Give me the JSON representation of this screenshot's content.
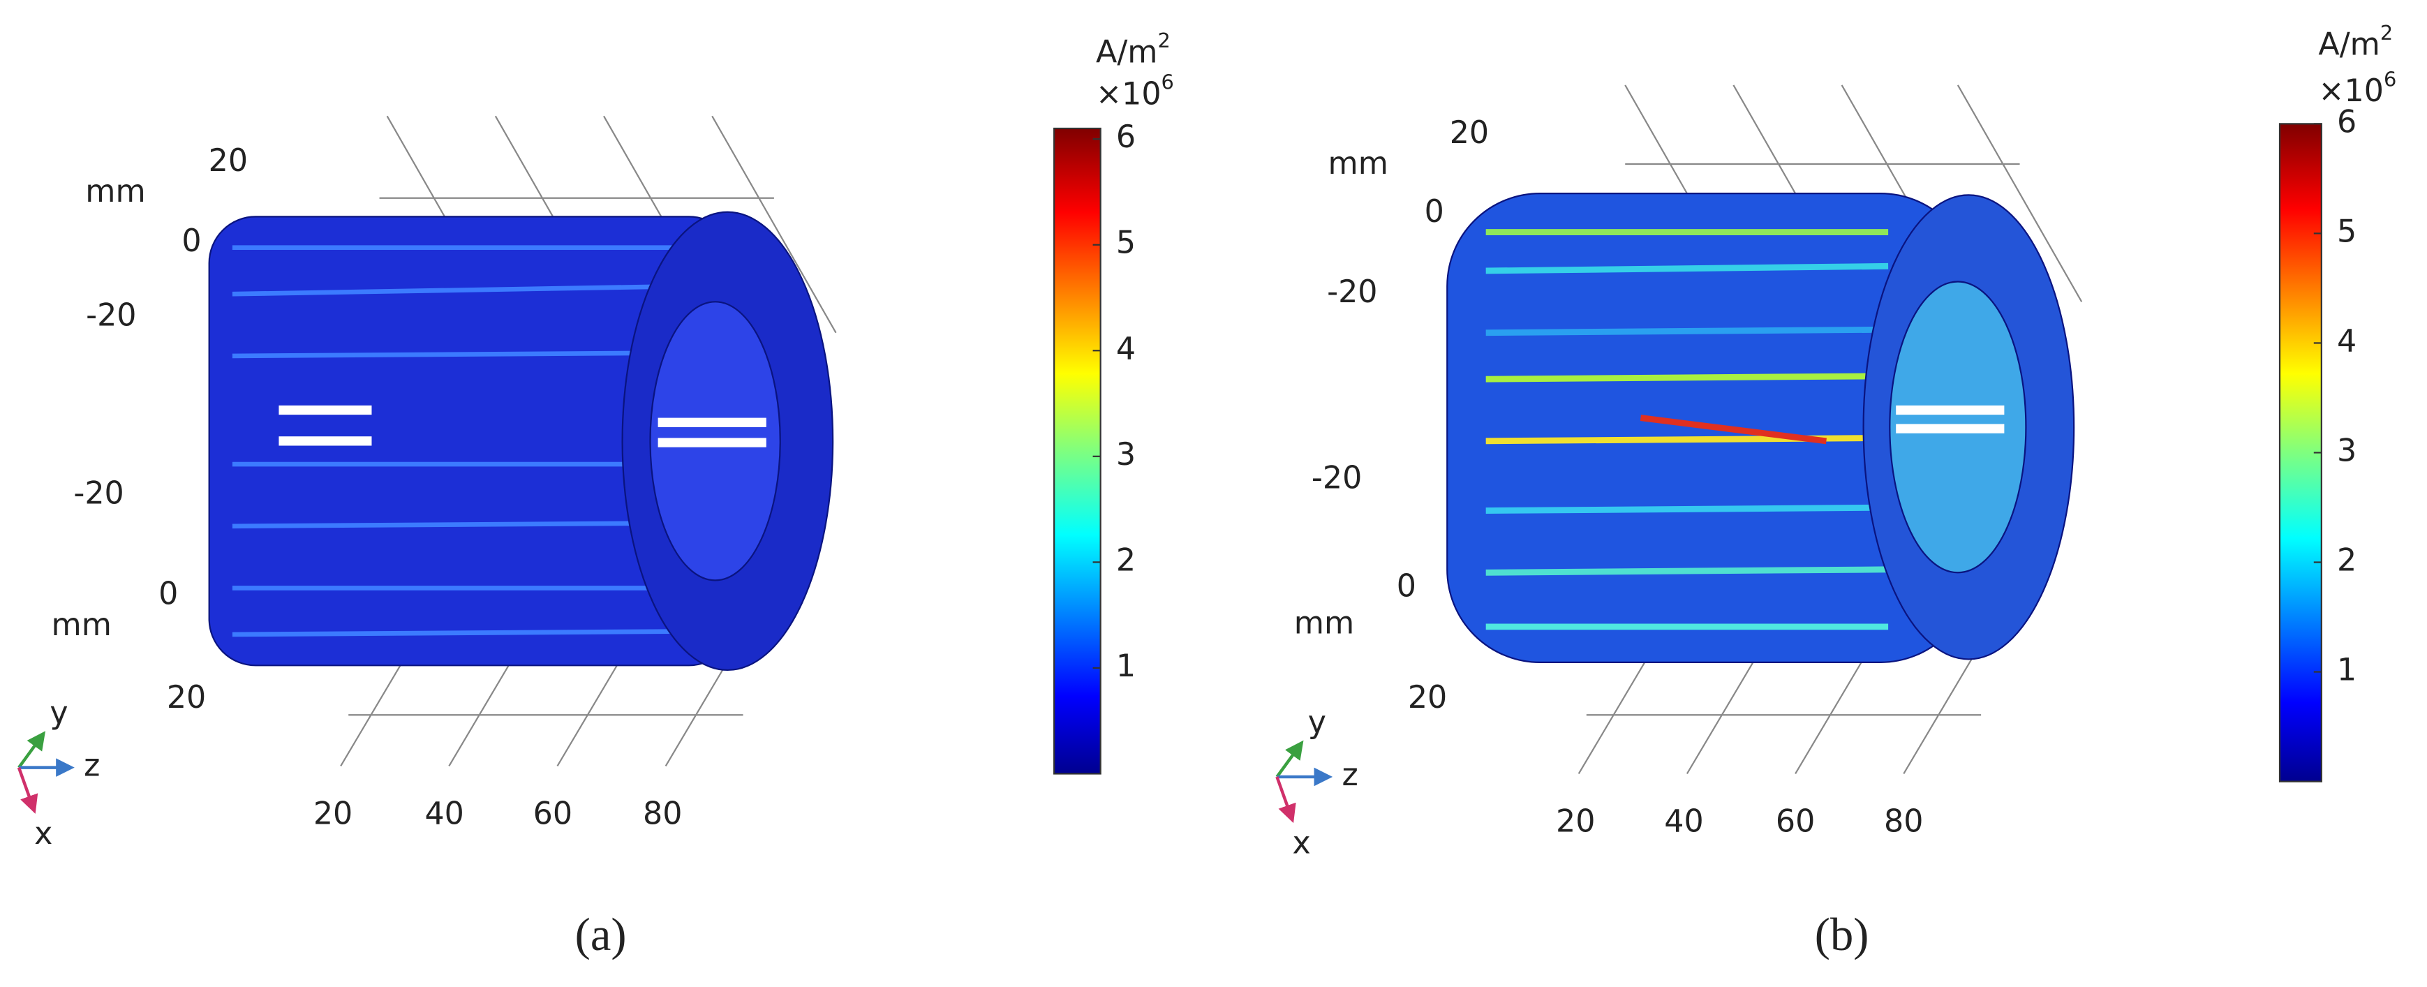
{
  "panels": [
    {
      "caption": "(a)",
      "unit": "A/m",
      "unit_exp": "2",
      "multiplier": "×10",
      "multiplier_exp": "6",
      "colorbar_range": [
        0,
        6.1
      ],
      "colorbar_ticks": [
        1,
        2,
        3,
        4,
        5,
        6
      ],
      "y_axis_unit": "mm",
      "y_ticks": [
        20,
        0,
        -20
      ],
      "x_axis_unit": "mm",
      "x_ticks": [
        -20,
        0,
        20
      ],
      "z_ticks": [
        20,
        40,
        60,
        80
      ],
      "triad": [
        "y",
        "z",
        "x"
      ]
    },
    {
      "caption": "(b)",
      "unit": "A/m",
      "unit_exp": "2",
      "multiplier": "×10",
      "multiplier_exp": "6",
      "colorbar_range": [
        0,
        6
      ],
      "colorbar_ticks": [
        1,
        2,
        3,
        4,
        5,
        6
      ],
      "y_axis_unit": "mm",
      "y_ticks": [
        20,
        0,
        -20
      ],
      "x_axis_unit": "mm",
      "x_ticks": [
        -20,
        0,
        20
      ],
      "z_ticks": [
        20,
        40,
        60,
        80
      ],
      "triad": [
        "y",
        "z",
        "x"
      ]
    }
  ]
}
